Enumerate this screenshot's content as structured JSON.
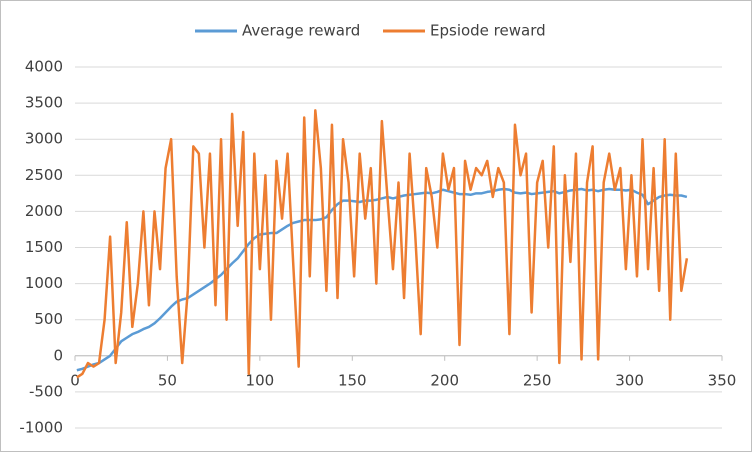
{
  "chart_data": {
    "type": "line",
    "x": [
      1,
      4,
      7,
      10,
      13,
      16,
      19,
      22,
      25,
      28,
      31,
      34,
      37,
      40,
      43,
      46,
      49,
      52,
      55,
      58,
      61,
      64,
      67,
      70,
      73,
      76,
      79,
      82,
      85,
      88,
      91,
      94,
      97,
      100,
      103,
      106,
      109,
      112,
      115,
      118,
      121,
      124,
      127,
      130,
      133,
      136,
      139,
      142,
      145,
      148,
      151,
      154,
      157,
      160,
      163,
      166,
      169,
      172,
      175,
      178,
      181,
      184,
      187,
      190,
      193,
      196,
      199,
      202,
      205,
      208,
      211,
      214,
      217,
      220,
      223,
      226,
      229,
      232,
      235,
      238,
      241,
      244,
      247,
      250,
      253,
      256,
      259,
      262,
      265,
      268,
      271,
      274,
      277,
      280,
      283,
      286,
      289,
      292,
      295,
      298,
      301,
      304,
      307,
      310,
      313,
      316,
      319,
      322,
      325,
      328,
      331
    ],
    "series": [
      {
        "name": "Average reward",
        "color": "#5b9bd5",
        "values": [
          -200,
          -180,
          -150,
          -120,
          -100,
          -50,
          0,
          100,
          200,
          250,
          300,
          330,
          370,
          400,
          450,
          520,
          600,
          680,
          750,
          780,
          800,
          850,
          900,
          950,
          1000,
          1060,
          1120,
          1200,
          1280,
          1350,
          1450,
          1550,
          1630,
          1680,
          1690,
          1700,
          1700,
          1750,
          1800,
          1840,
          1860,
          1880,
          1880,
          1880,
          1890,
          1920,
          2020,
          2100,
          2150,
          2150,
          2140,
          2130,
          2150,
          2150,
          2160,
          2180,
          2200,
          2180,
          2200,
          2220,
          2230,
          2240,
          2250,
          2260,
          2250,
          2270,
          2300,
          2280,
          2260,
          2240,
          2240,
          2230,
          2250,
          2250,
          2270,
          2280,
          2300,
          2310,
          2300,
          2260,
          2250,
          2260,
          2240,
          2250,
          2260,
          2270,
          2280,
          2250,
          2270,
          2290,
          2300,
          2310,
          2290,
          2300,
          2280,
          2300,
          2310,
          2300,
          2300,
          2290,
          2300,
          2260,
          2230,
          2100,
          2150,
          2200,
          2220,
          2230,
          2220,
          2220,
          2200
        ]
      },
      {
        "name": "Epsiode reward",
        "color": "#ed7d31",
        "values": [
          -300,
          -250,
          -100,
          -150,
          -100,
          500,
          1650,
          -100,
          600,
          1850,
          400,
          1000,
          2000,
          700,
          2000,
          1200,
          2600,
          3000,
          1100,
          -100,
          900,
          2900,
          2800,
          1500,
          2800,
          700,
          3000,
          500,
          3350,
          1800,
          3100,
          -250,
          2800,
          1200,
          2500,
          500,
          2700,
          1900,
          2800,
          1300,
          -150,
          3300,
          1100,
          3400,
          2600,
          900,
          3200,
          800,
          3000,
          2400,
          1100,
          2800,
          1900,
          2600,
          1000,
          3250,
          2200,
          1200,
          2400,
          800,
          2800,
          1700,
          300,
          2600,
          2200,
          1500,
          2800,
          2300,
          2600,
          150,
          2700,
          2300,
          2600,
          2500,
          2700,
          2200,
          2600,
          2400,
          300,
          3200,
          2500,
          2800,
          600,
          2400,
          2700,
          1500,
          2900,
          -100,
          2500,
          1300,
          2800,
          -50,
          2400,
          2900,
          -50,
          2400,
          2800,
          2300,
          2600,
          1200,
          2500,
          1100,
          3000,
          1200,
          2600,
          900,
          3000,
          500,
          2800,
          900,
          1350
        ]
      }
    ],
    "xlim": [
      0,
      350
    ],
    "xticks": [
      0,
      50,
      100,
      150,
      200,
      250,
      300,
      350
    ],
    "ylim": [
      -1000,
      4000
    ],
    "yticks": [
      -1000,
      -500,
      0,
      500,
      1000,
      1500,
      2000,
      2500,
      3000,
      3500,
      4000
    ],
    "grid": true,
    "legend": "top"
  }
}
